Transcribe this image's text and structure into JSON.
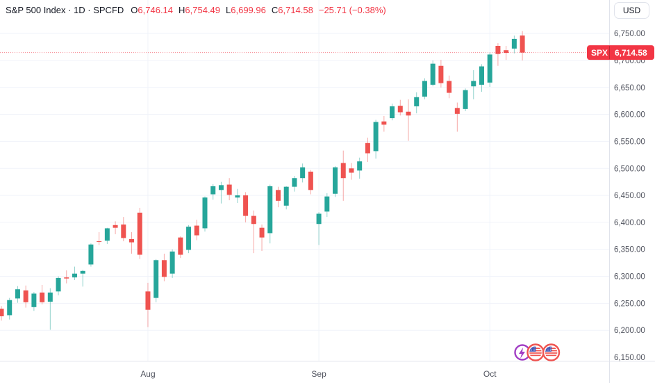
{
  "header": {
    "symbol_title": "S&P 500 Index · 1D · SPCFD",
    "ohlc": [
      {
        "label": "O",
        "value": "6,746.14"
      },
      {
        "label": "H",
        "value": "6,754.49"
      },
      {
        "label": "L",
        "value": "6,699.96"
      },
      {
        "label": "C",
        "value": "6,714.58"
      }
    ],
    "change": "−25.71 (−0.38%)"
  },
  "price_axis": {
    "currency_label": "USD",
    "ticks": [
      "6,750.00",
      "6,700.00",
      "6,650.00",
      "6,600.00",
      "6,550.00",
      "6,500.00",
      "6,450.00",
      "6,400.00",
      "6,350.00",
      "6,300.00",
      "6,250.00",
      "6,200.00",
      "6,150.00"
    ],
    "last_price_badge": {
      "symbol": "SPX",
      "price": "6,714.58"
    }
  },
  "time_axis": {
    "labels": [
      {
        "text": "Aug",
        "index": 18
      },
      {
        "text": "Sep",
        "index": 39
      },
      {
        "text": "Oct",
        "index": 60
      }
    ]
  },
  "events": {
    "icons": [
      {
        "type": "economic-event-purple"
      },
      {
        "type": "us-flag-event"
      },
      {
        "type": "us-flag-event"
      }
    ]
  },
  "colors": {
    "up": "#26a69a",
    "down": "#ef5350",
    "accent_red": "#f23645",
    "grid": "#f0f3fa",
    "border": "#e0e3eb",
    "text": "#131722",
    "axis_text": "#50535e",
    "flag_blue": "#3d52b5",
    "flag_ring": "#ef5350",
    "purple": "#a13dc4"
  },
  "chart_data": {
    "type": "candlestick",
    "title": "S&P 500 Index",
    "symbol": "SPX",
    "exchange": "SPCFD",
    "interval": "1D",
    "last_price": 6714.58,
    "last_change": -25.71,
    "last_change_pct": -0.38,
    "y_axis": {
      "min_visible": 6132,
      "max_visible": 6812,
      "tick_step": 50,
      "tick_min": 6150,
      "tick_max": 6750
    },
    "columns": [
      "date",
      "open",
      "high",
      "low",
      "close"
    ],
    "candles": [
      [
        "Jul 8",
        6240,
        6245,
        6218,
        6226
      ],
      [
        "Jul 9",
        6228,
        6260,
        6220,
        6256
      ],
      [
        "Jul 10",
        6259,
        6282,
        6251,
        6276
      ],
      [
        "Jul 11",
        6274,
        6283,
        6242,
        6252
      ],
      [
        "Jul 14",
        6243,
        6271,
        6236,
        6268
      ],
      [
        "Jul 15",
        6270,
        6284,
        6248,
        6252
      ],
      [
        "Jul 16",
        6253,
        6278,
        6201,
        6270
      ],
      [
        "Jul 17",
        6272,
        6300,
        6265,
        6297
      ],
      [
        "Jul 18",
        6298,
        6311,
        6287,
        6296
      ],
      [
        "Jul 21",
        6298,
        6318,
        6293,
        6305
      ],
      [
        "Jul 22",
        6305,
        6312,
        6281,
        6310
      ],
      [
        "Jul 23",
        6322,
        6361,
        6318,
        6359
      ],
      [
        "Jul 24",
        6365,
        6382,
        6358,
        6364
      ],
      [
        "Jul 25",
        6366,
        6390,
        6360,
        6389
      ],
      [
        "Jul 28",
        6395,
        6402,
        6378,
        6390
      ],
      [
        "Jul 29",
        6396,
        6410,
        6365,
        6371
      ],
      [
        "Jul 30",
        6369,
        6382,
        6342,
        6363
      ],
      [
        "Jul 31",
        6418,
        6427,
        6332,
        6340
      ],
      [
        "Aug 1",
        6272,
        6288,
        6206,
        6238
      ],
      [
        "Aug 4",
        6260,
        6332,
        6252,
        6330
      ],
      [
        "Aug 5",
        6330,
        6342,
        6291,
        6299
      ],
      [
        "Aug 6",
        6305,
        6350,
        6297,
        6346
      ],
      [
        "Aug 7",
        6372,
        6374,
        6334,
        6340
      ],
      [
        "Aug 8",
        6349,
        6395,
        6343,
        6392
      ],
      [
        "Aug 11",
        6394,
        6405,
        6367,
        6376
      ],
      [
        "Aug 12",
        6389,
        6448,
        6383,
        6446
      ],
      [
        "Aug 13",
        6452,
        6471,
        6442,
        6467
      ],
      [
        "Aug 14",
        6460,
        6475,
        6435,
        6469
      ],
      [
        "Aug 15",
        6470,
        6482,
        6441,
        6451
      ],
      [
        "Aug 18",
        6446,
        6462,
        6436,
        6450
      ],
      [
        "Aug 19",
        6450,
        6456,
        6400,
        6412
      ],
      [
        "Aug 20",
        6412,
        6422,
        6343,
        6397
      ],
      [
        "Aug 21",
        6390,
        6396,
        6347,
        6372
      ],
      [
        "Aug 22",
        6380,
        6470,
        6361,
        6467
      ],
      [
        "Aug 25",
        6460,
        6466,
        6428,
        6440
      ],
      [
        "Aug 26",
        6431,
        6467,
        6424,
        6466
      ],
      [
        "Aug 27",
        6466,
        6486,
        6457,
        6482
      ],
      [
        "Aug 28",
        6482,
        6509,
        6474,
        6502
      ],
      [
        "Aug 29",
        6494,
        6497,
        6452,
        6460
      ],
      [
        "Sep 2",
        6397,
        6419,
        6358,
        6416
      ],
      [
        "Sep 3",
        6420,
        6454,
        6410,
        6448
      ],
      [
        "Sep 4",
        6453,
        6504,
        6447,
        6502
      ],
      [
        "Sep 5",
        6510,
        6533,
        6440,
        6482
      ],
      [
        "Sep 8",
        6500,
        6510,
        6479,
        6492
      ],
      [
        "Sep 9",
        6496,
        6520,
        6481,
        6513
      ],
      [
        "Sep 10",
        6547,
        6557,
        6512,
        6528
      ],
      [
        "Sep 11",
        6532,
        6590,
        6518,
        6586
      ],
      [
        "Sep 12",
        6587,
        6597,
        6568,
        6581
      ],
      [
        "Sep 15",
        6593,
        6620,
        6589,
        6615
      ],
      [
        "Sep 16",
        6616,
        6627,
        6598,
        6604
      ],
      [
        "Sep 17",
        6605,
        6628,
        6551,
        6598
      ],
      [
        "Sep 18",
        6615,
        6641,
        6602,
        6632
      ],
      [
        "Sep 19",
        6633,
        6667,
        6628,
        6662
      ],
      [
        "Sep 22",
        6655,
        6700,
        6652,
        6694
      ],
      [
        "Sep 23",
        6690,
        6701,
        6650,
        6658
      ],
      [
        "Sep 24",
        6662,
        6672,
        6630,
        6640
      ],
      [
        "Sep 25",
        6612,
        6622,
        6568,
        6601
      ],
      [
        "Sep 26",
        6610,
        6648,
        6606,
        6645
      ],
      [
        "Sep 29",
        6652,
        6682,
        6628,
        6662
      ],
      [
        "Sep 30",
        6655,
        6693,
        6642,
        6689
      ],
      [
        "Oct 1",
        6659,
        6715,
        6651,
        6711
      ],
      [
        "Oct 2",
        6727,
        6732,
        6690,
        6712
      ],
      [
        "Oct 3",
        6719,
        6727,
        6701,
        6714
      ],
      [
        "Oct 6",
        6722,
        6746,
        6713,
        6740
      ],
      [
        "Oct 7",
        6746.14,
        6754.49,
        6699.96,
        6714.58
      ]
    ]
  }
}
